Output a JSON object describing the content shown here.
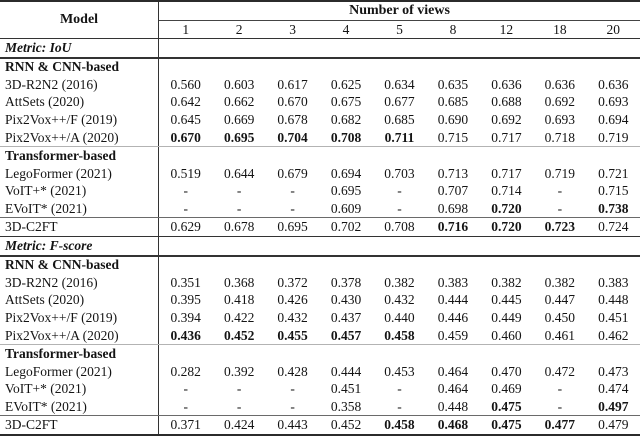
{
  "table": {
    "header": {
      "model_label": "Model",
      "views_label": "Number of views",
      "view_counts": [
        "1",
        "2",
        "3",
        "4",
        "5",
        "8",
        "12",
        "18",
        "20"
      ]
    },
    "sections": [
      {
        "metric_label": "Metric: IoU",
        "groups": [
          {
            "group_label": "RNN & CNN-based",
            "rows": [
              {
                "model": "3D-R2N2 (2016)",
                "values": [
                  "0.560",
                  "0.603",
                  "0.617",
                  "0.625",
                  "0.634",
                  "0.635",
                  "0.636",
                  "0.636",
                  "0.636"
                ],
                "bold": []
              },
              {
                "model": "AttSets (2020)",
                "values": [
                  "0.642",
                  "0.662",
                  "0.670",
                  "0.675",
                  "0.677",
                  "0.685",
                  "0.688",
                  "0.692",
                  "0.693"
                ],
                "bold": []
              },
              {
                "model": "Pix2Vox++/F (2019)",
                "values": [
                  "0.645",
                  "0.669",
                  "0.678",
                  "0.682",
                  "0.685",
                  "0.690",
                  "0.692",
                  "0.693",
                  "0.694"
                ],
                "bold": []
              },
              {
                "model": "Pix2Vox++/A (2020)",
                "values": [
                  "0.670",
                  "0.695",
                  "0.704",
                  "0.708",
                  "0.711",
                  "0.715",
                  "0.717",
                  "0.718",
                  "0.719"
                ],
                "bold": [
                  0,
                  1,
                  2,
                  3,
                  4
                ]
              }
            ]
          },
          {
            "group_label": "Transformer-based",
            "rows": [
              {
                "model": "LegoFormer (2021)",
                "values": [
                  "0.519",
                  "0.644",
                  "0.679",
                  "0.694",
                  "0.703",
                  "0.713",
                  "0.717",
                  "0.719",
                  "0.721"
                ],
                "bold": []
              },
              {
                "model": "VoIT+* (2021)",
                "values": [
                  "-",
                  "-",
                  "-",
                  "0.695",
                  "-",
                  "0.707",
                  "0.714",
                  "-",
                  "0.715"
                ],
                "bold": []
              },
              {
                "model": "EVoIT* (2021)",
                "values": [
                  "-",
                  "-",
                  "-",
                  "0.609",
                  "-",
                  "0.698",
                  "0.720",
                  "-",
                  "0.738"
                ],
                "bold": [
                  6,
                  8
                ]
              }
            ]
          }
        ],
        "summary_row": {
          "model": "3D-C2FT",
          "values": [
            "0.629",
            "0.678",
            "0.695",
            "0.702",
            "0.708",
            "0.716",
            "0.720",
            "0.723",
            "0.724"
          ],
          "bold": [
            5,
            6,
            7
          ]
        }
      },
      {
        "metric_label": "Metric: F-score",
        "groups": [
          {
            "group_label": "RNN & CNN-based",
            "rows": [
              {
                "model": "3D-R2N2 (2016)",
                "values": [
                  "0.351",
                  "0.368",
                  "0.372",
                  "0.378",
                  "0.382",
                  "0.383",
                  "0.382",
                  "0.382",
                  "0.383"
                ],
                "bold": []
              },
              {
                "model": "AttSets (2020)",
                "values": [
                  "0.395",
                  "0.418",
                  "0.426",
                  "0.430",
                  "0.432",
                  "0.444",
                  "0.445",
                  "0.447",
                  "0.448"
                ],
                "bold": []
              },
              {
                "model": "Pix2Vox++/F (2019)",
                "values": [
                  "0.394",
                  "0.422",
                  "0.432",
                  "0.437",
                  "0.440",
                  "0.446",
                  "0.449",
                  "0.450",
                  "0.451"
                ],
                "bold": []
              },
              {
                "model": "Pix2Vox++/A (2020)",
                "values": [
                  "0.436",
                  "0.452",
                  "0.455",
                  "0.457",
                  "0.458",
                  "0.459",
                  "0.460",
                  "0.461",
                  "0.462"
                ],
                "bold": [
                  0,
                  1,
                  2,
                  3,
                  4
                ]
              }
            ]
          },
          {
            "group_label": "Transformer-based",
            "rows": [
              {
                "model": "LegoFormer (2021)",
                "values": [
                  "0.282",
                  "0.392",
                  "0.428",
                  "0.444",
                  "0.453",
                  "0.464",
                  "0.470",
                  "0.472",
                  "0.473"
                ],
                "bold": []
              },
              {
                "model": "VoIT+* (2021)",
                "values": [
                  "-",
                  "-",
                  "-",
                  "0.451",
                  "-",
                  "0.464",
                  "0.469",
                  "-",
                  "0.474"
                ],
                "bold": []
              },
              {
                "model": "EVoIT* (2021)",
                "values": [
                  "-",
                  "-",
                  "-",
                  "0.358",
                  "-",
                  "0.448",
                  "0.475",
                  "-",
                  "0.497"
                ],
                "bold": [
                  6,
                  8
                ]
              }
            ]
          }
        ],
        "summary_row": {
          "model": "3D-C2FT",
          "values": [
            "0.371",
            "0.424",
            "0.443",
            "0.452",
            "0.458",
            "0.468",
            "0.475",
            "0.477",
            "0.479"
          ],
          "bold": [
            4,
            5,
            6,
            7
          ]
        }
      }
    ]
  }
}
